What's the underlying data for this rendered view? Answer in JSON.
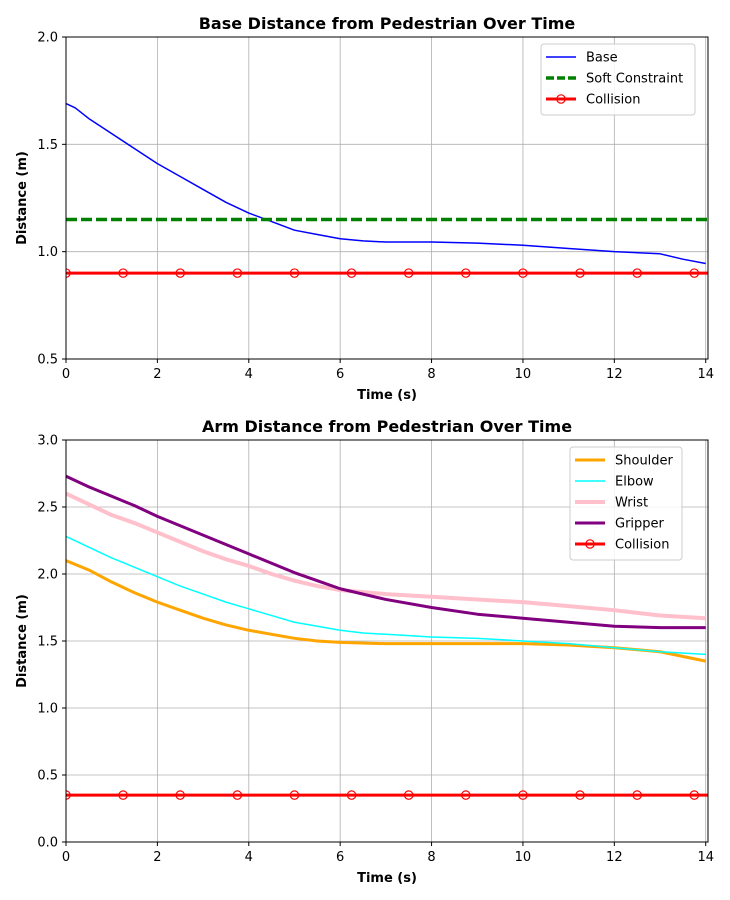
{
  "chart_data": [
    {
      "type": "line",
      "title": "Base Distance from Pedestrian Over Time",
      "xlabel": "Time (s)",
      "ylabel": "Distance (m)",
      "xlim": [
        0,
        14.05
      ],
      "ylim": [
        0.5,
        2.0
      ],
      "xticks": [
        0,
        2,
        4,
        6,
        8,
        10,
        12,
        14
      ],
      "yticks": [
        0.5,
        1.0,
        1.5,
        2.0
      ],
      "xtick_labels": [
        "0",
        "2",
        "4",
        "6",
        "8",
        "10",
        "12",
        "14"
      ],
      "ytick_labels": [
        "0.5",
        "1.0",
        "1.5",
        "2.0"
      ],
      "grid": true,
      "legend_position": "top-right",
      "series": [
        {
          "name": "Base",
          "color": "#0000ff",
          "style": "solid",
          "width": 1.5,
          "x": [
            0,
            0.2,
            0.5,
            1,
            1.5,
            2,
            2.5,
            3,
            3.5,
            4,
            4.5,
            5,
            5.5,
            6,
            6.5,
            7,
            8,
            9,
            10,
            11,
            12,
            13,
            13.5,
            14
          ],
          "y": [
            1.69,
            1.67,
            1.62,
            1.55,
            1.48,
            1.41,
            1.35,
            1.29,
            1.23,
            1.18,
            1.14,
            1.1,
            1.08,
            1.06,
            1.05,
            1.045,
            1.045,
            1.04,
            1.03,
            1.015,
            1.0,
            0.99,
            0.965,
            0.945
          ]
        },
        {
          "name": "Soft Constraint",
          "color": "#008000",
          "style": "dashed",
          "width": 3.5,
          "x": [
            0,
            14.05
          ],
          "y": [
            1.15,
            1.15
          ]
        },
        {
          "name": "Collision",
          "color": "#ff0000",
          "style": "solid",
          "width": 3,
          "marker": "circle",
          "x": [
            0,
            14.05
          ],
          "y": [
            0.9,
            0.9
          ],
          "marker_x": [
            0,
            1.25,
            2.5,
            3.75,
            5,
            6.25,
            7.5,
            8.75,
            10,
            11.25,
            12.5,
            13.75
          ]
        }
      ]
    },
    {
      "type": "line",
      "title": "Arm Distance from Pedestrian Over Time",
      "xlabel": "Time (s)",
      "ylabel": "Distance (m)",
      "xlim": [
        0,
        14.05
      ],
      "ylim": [
        0.0,
        3.0
      ],
      "xticks": [
        0,
        2,
        4,
        6,
        8,
        10,
        12,
        14
      ],
      "yticks": [
        0.0,
        0.5,
        1.0,
        1.5,
        2.0,
        2.5,
        3.0
      ],
      "xtick_labels": [
        "0",
        "2",
        "4",
        "6",
        "8",
        "10",
        "12",
        "14"
      ],
      "ytick_labels": [
        "0.0",
        "0.5",
        "1.0",
        "1.5",
        "2.0",
        "2.5",
        "3.0"
      ],
      "grid": true,
      "legend_position": "top-right",
      "series": [
        {
          "name": "Shoulder",
          "color": "#ffa500",
          "style": "solid",
          "width": 3,
          "x": [
            0,
            0.5,
            1,
            1.5,
            2,
            2.5,
            3,
            3.5,
            4,
            4.5,
            5,
            5.5,
            6,
            7,
            8,
            9,
            10,
            11,
            12,
            13,
            14
          ],
          "y": [
            2.1,
            2.03,
            1.94,
            1.86,
            1.79,
            1.73,
            1.67,
            1.62,
            1.58,
            1.55,
            1.52,
            1.5,
            1.49,
            1.48,
            1.48,
            1.48,
            1.48,
            1.47,
            1.45,
            1.42,
            1.35
          ]
        },
        {
          "name": "Elbow",
          "color": "#00ffff",
          "style": "solid",
          "width": 1.5,
          "x": [
            0,
            0.5,
            1,
            1.5,
            2,
            2.5,
            3,
            3.5,
            4,
            4.5,
            5,
            5.5,
            6,
            6.5,
            7,
            8,
            9,
            10,
            11,
            12,
            13,
            14
          ],
          "y": [
            2.28,
            2.2,
            2.12,
            2.05,
            1.98,
            1.91,
            1.85,
            1.79,
            1.74,
            1.69,
            1.64,
            1.61,
            1.58,
            1.56,
            1.55,
            1.53,
            1.52,
            1.5,
            1.48,
            1.45,
            1.42,
            1.4
          ]
        },
        {
          "name": "Wrist",
          "color": "#ffc0cb",
          "style": "solid",
          "width": 4,
          "x": [
            0,
            0.5,
            1,
            1.5,
            2,
            2.5,
            3,
            3.5,
            4,
            4.5,
            5,
            5.5,
            6,
            7,
            8,
            9,
            10,
            11,
            12,
            13,
            14
          ],
          "y": [
            2.6,
            2.52,
            2.44,
            2.38,
            2.31,
            2.24,
            2.17,
            2.11,
            2.06,
            2.0,
            1.95,
            1.91,
            1.88,
            1.85,
            1.83,
            1.81,
            1.79,
            1.76,
            1.73,
            1.69,
            1.67
          ]
        },
        {
          "name": "Gripper",
          "color": "#800080",
          "style": "solid",
          "width": 3,
          "x": [
            0,
            0.5,
            1,
            1.5,
            2,
            2.5,
            3,
            3.5,
            4,
            4.5,
            5,
            5.5,
            6,
            7,
            8,
            9,
            10,
            11,
            12,
            13,
            14
          ],
          "y": [
            2.73,
            2.65,
            2.58,
            2.51,
            2.43,
            2.36,
            2.29,
            2.22,
            2.15,
            2.08,
            2.01,
            1.95,
            1.89,
            1.81,
            1.75,
            1.7,
            1.67,
            1.64,
            1.61,
            1.6,
            1.6
          ]
        },
        {
          "name": "Collision",
          "color": "#ff0000",
          "style": "solid",
          "width": 3,
          "marker": "circle",
          "x": [
            0,
            14.05
          ],
          "y": [
            0.35,
            0.35
          ],
          "marker_x": [
            0,
            1.25,
            2.5,
            3.75,
            5,
            6.25,
            7.5,
            8.75,
            10,
            11.25,
            12.5,
            13.75
          ]
        }
      ]
    }
  ]
}
